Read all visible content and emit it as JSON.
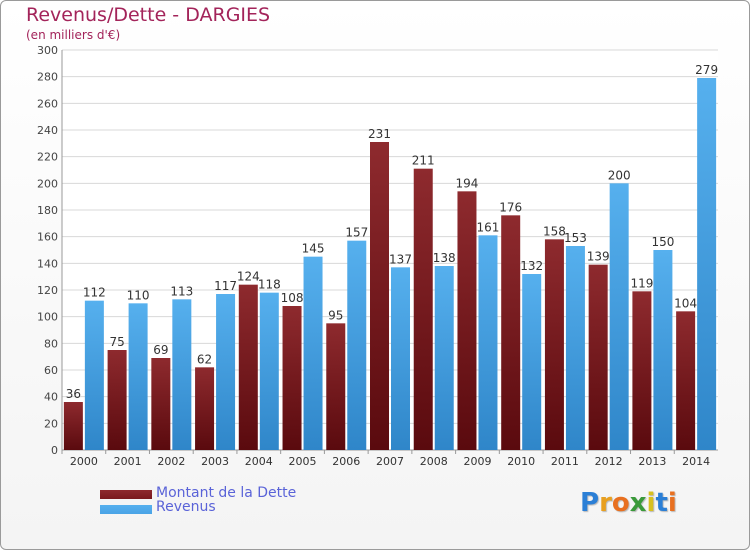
{
  "header": {
    "title": "Revenus/Dette - DARGIES",
    "subtitle": "(en milliers d'€)"
  },
  "chart_data": {
    "type": "bar",
    "categories": [
      "2000",
      "2001",
      "2002",
      "2003",
      "2004",
      "2005",
      "2006",
      "2007",
      "2008",
      "2009",
      "2010",
      "2011",
      "2012",
      "2013",
      "2014"
    ],
    "series": [
      {
        "name": "Montant de la Dette",
        "values": [
          36,
          75,
          69,
          62,
          124,
          108,
          95,
          231,
          211,
          194,
          176,
          158,
          139,
          119,
          104
        ],
        "color": "#7a1a1e"
      },
      {
        "name": "Revenus",
        "values": [
          112,
          110,
          113,
          117,
          118,
          145,
          157,
          137,
          138,
          161,
          132,
          153,
          200,
          150,
          279
        ],
        "color": "#4aa3e6"
      }
    ],
    "title": "Revenus/Dette - DARGIES",
    "ylabel": "",
    "xlabel": "",
    "ylim": [
      0,
      300
    ],
    "yticks": [
      0,
      20,
      40,
      60,
      80,
      100,
      120,
      140,
      160,
      180,
      200,
      220,
      240,
      260,
      280,
      300
    ],
    "grid": true,
    "legend": "bottom-left"
  },
  "logo": {
    "letters": [
      "P",
      "r",
      "o",
      "x",
      "i",
      "t",
      "i"
    ],
    "colors": [
      "#2b7fd6",
      "#e8a020",
      "#e87020",
      "#3a9a3a",
      "#d8c020",
      "#2b7fd6",
      "#e87020"
    ]
  }
}
